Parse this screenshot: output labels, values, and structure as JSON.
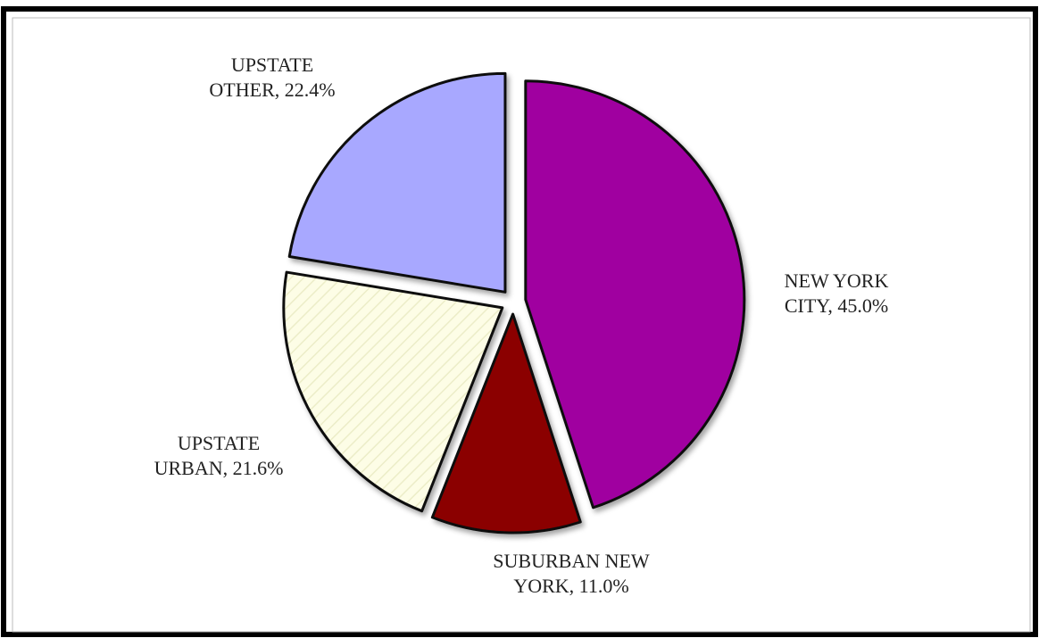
{
  "chart_data": {
    "type": "pie",
    "values": [
      45.0,
      11.0,
      21.6,
      22.4
    ],
    "value_labels": [
      "NEW YORK CITY, 45.0%",
      "SUBURBAN NEW YORK, 11.0%",
      "UPSTATE URBAN, 21.6%",
      "UPSTATE OTHER, 22.4%"
    ],
    "colors": [
      "#a000a0",
      "#8b0000",
      "#fdfde6",
      "#a8a8ff"
    ]
  }
}
